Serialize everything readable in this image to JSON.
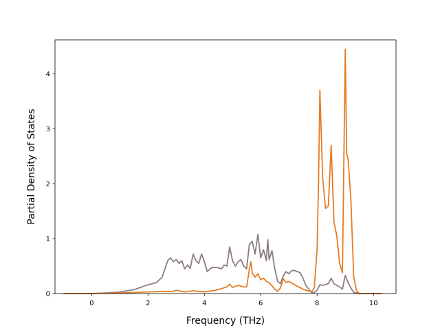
{
  "chart_data": {
    "type": "line",
    "title": "",
    "xlabel": "Frequency (THz)",
    "ylabel": "Partial Density of States",
    "xlim": [
      -1.3,
      10.8
    ],
    "ylim": [
      0,
      4.62
    ],
    "xticks": [
      0,
      2,
      4,
      6,
      8,
      10
    ],
    "yticks": [
      0,
      1,
      2,
      3,
      4
    ],
    "grid": false,
    "legend": "none",
    "series": [
      {
        "color": "#8c7b82",
        "points": [
          [
            -1.0,
            0.0
          ],
          [
            0.0,
            0.0
          ],
          [
            0.5,
            0.01
          ],
          [
            1.0,
            0.03
          ],
          [
            1.5,
            0.07
          ],
          [
            2.0,
            0.16
          ],
          [
            2.3,
            0.2
          ],
          [
            2.5,
            0.3
          ],
          [
            2.7,
            0.6
          ],
          [
            2.8,
            0.65
          ],
          [
            2.9,
            0.58
          ],
          [
            3.0,
            0.62
          ],
          [
            3.1,
            0.55
          ],
          [
            3.2,
            0.6
          ],
          [
            3.3,
            0.45
          ],
          [
            3.4,
            0.52
          ],
          [
            3.5,
            0.46
          ],
          [
            3.6,
            0.72
          ],
          [
            3.7,
            0.6
          ],
          [
            3.8,
            0.55
          ],
          [
            3.9,
            0.72
          ],
          [
            4.0,
            0.58
          ],
          [
            4.1,
            0.4
          ],
          [
            4.2,
            0.45
          ],
          [
            4.3,
            0.48
          ],
          [
            4.5,
            0.47
          ],
          [
            4.6,
            0.45
          ],
          [
            4.7,
            0.52
          ],
          [
            4.8,
            0.5
          ],
          [
            4.9,
            0.85
          ],
          [
            5.0,
            0.6
          ],
          [
            5.1,
            0.5
          ],
          [
            5.2,
            0.58
          ],
          [
            5.3,
            0.62
          ],
          [
            5.4,
            0.5
          ],
          [
            5.5,
            0.45
          ],
          [
            5.6,
            0.9
          ],
          [
            5.7,
            0.95
          ],
          [
            5.8,
            0.72
          ],
          [
            5.9,
            1.08
          ],
          [
            6.0,
            0.65
          ],
          [
            6.1,
            0.8
          ],
          [
            6.2,
            0.6
          ],
          [
            6.25,
            0.98
          ],
          [
            6.3,
            0.62
          ],
          [
            6.4,
            0.78
          ],
          [
            6.5,
            0.45
          ],
          [
            6.6,
            0.22
          ],
          [
            6.7,
            0.18
          ],
          [
            6.8,
            0.32
          ],
          [
            6.9,
            0.4
          ],
          [
            7.0,
            0.36
          ],
          [
            7.1,
            0.42
          ],
          [
            7.2,
            0.42
          ],
          [
            7.4,
            0.38
          ],
          [
            7.5,
            0.28
          ],
          [
            7.6,
            0.15
          ],
          [
            7.8,
            0.02
          ],
          [
            7.9,
            0.02
          ],
          [
            8.0,
            0.06
          ],
          [
            8.1,
            0.16
          ],
          [
            8.2,
            0.15
          ],
          [
            8.4,
            0.18
          ],
          [
            8.5,
            0.28
          ],
          [
            8.6,
            0.18
          ],
          [
            8.7,
            0.15
          ],
          [
            8.8,
            0.12
          ],
          [
            8.9,
            0.08
          ],
          [
            9.0,
            0.33
          ],
          [
            9.1,
            0.2
          ],
          [
            9.2,
            0.1
          ],
          [
            9.3,
            0.02
          ],
          [
            9.5,
            0.0
          ],
          [
            10.3,
            0.0
          ]
        ]
      },
      {
        "color": "#e57c24",
        "points": [
          [
            -1.0,
            0.0
          ],
          [
            0.0,
            0.0
          ],
          [
            1.0,
            0.01
          ],
          [
            2.0,
            0.03
          ],
          [
            2.6,
            0.04
          ],
          [
            2.9,
            0.04
          ],
          [
            3.0,
            0.06
          ],
          [
            3.1,
            0.05
          ],
          [
            3.3,
            0.03
          ],
          [
            3.6,
            0.05
          ],
          [
            3.8,
            0.04
          ],
          [
            4.0,
            0.03
          ],
          [
            4.4,
            0.06
          ],
          [
            4.8,
            0.12
          ],
          [
            4.9,
            0.17
          ],
          [
            5.0,
            0.11
          ],
          [
            5.2,
            0.15
          ],
          [
            5.4,
            0.12
          ],
          [
            5.5,
            0.12
          ],
          [
            5.6,
            0.45
          ],
          [
            5.65,
            0.58
          ],
          [
            5.7,
            0.37
          ],
          [
            5.8,
            0.3
          ],
          [
            5.9,
            0.36
          ],
          [
            6.0,
            0.25
          ],
          [
            6.1,
            0.28
          ],
          [
            6.2,
            0.22
          ],
          [
            6.3,
            0.2
          ],
          [
            6.5,
            0.08
          ],
          [
            6.6,
            0.04
          ],
          [
            6.7,
            0.1
          ],
          [
            6.8,
            0.27
          ],
          [
            6.9,
            0.2
          ],
          [
            7.0,
            0.22
          ],
          [
            7.2,
            0.16
          ],
          [
            7.5,
            0.08
          ],
          [
            7.8,
            0.03
          ],
          [
            7.9,
            0.1
          ],
          [
            8.0,
            0.8
          ],
          [
            8.05,
            2.0
          ],
          [
            8.1,
            3.7
          ],
          [
            8.2,
            2.1
          ],
          [
            8.3,
            1.55
          ],
          [
            8.4,
            1.6
          ],
          [
            8.5,
            2.7
          ],
          [
            8.6,
            1.3
          ],
          [
            8.7,
            1.05
          ],
          [
            8.8,
            0.55
          ],
          [
            8.9,
            0.38
          ],
          [
            9.0,
            4.45
          ],
          [
            9.05,
            2.55
          ],
          [
            9.1,
            2.45
          ],
          [
            9.2,
            1.7
          ],
          [
            9.3,
            0.3
          ],
          [
            9.4,
            0.05
          ],
          [
            9.5,
            0.0
          ],
          [
            10.3,
            0.0
          ]
        ]
      }
    ]
  }
}
